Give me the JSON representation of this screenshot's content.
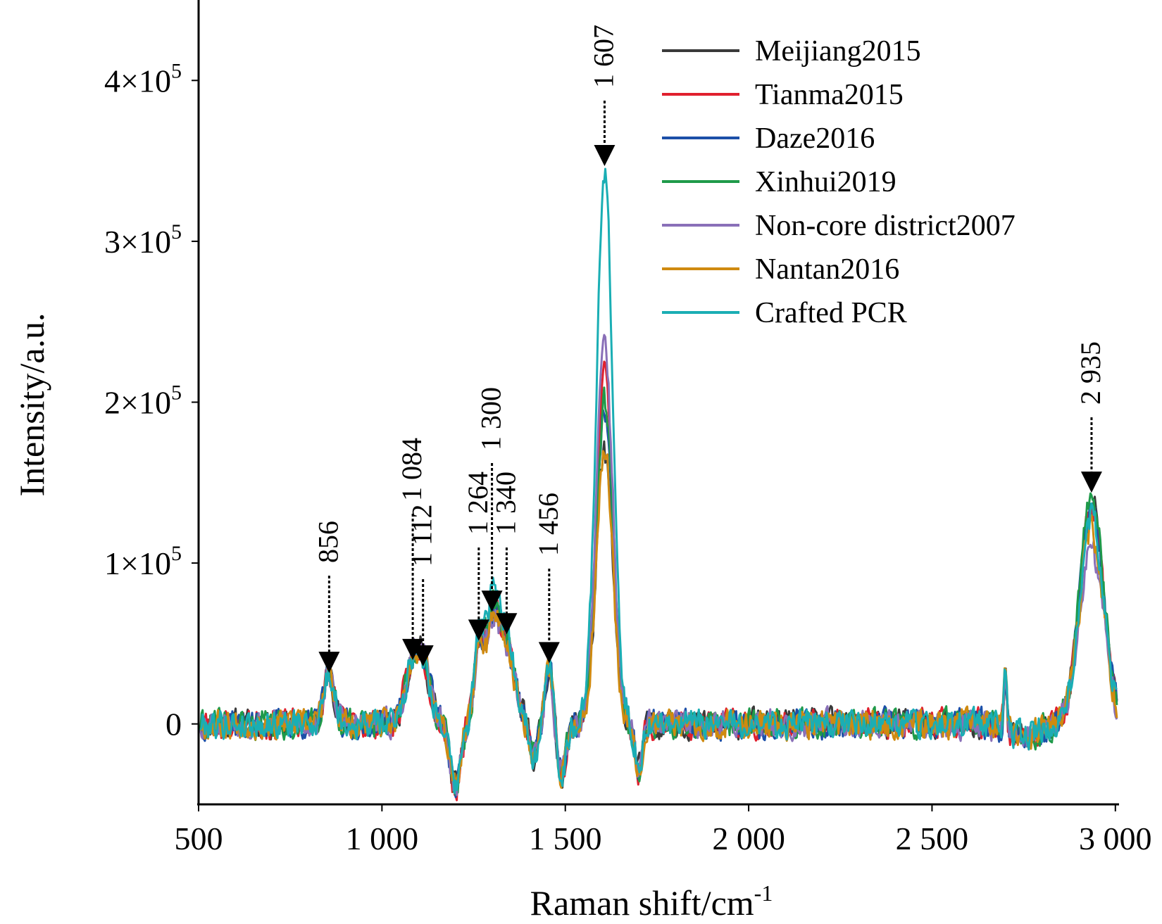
{
  "chart_data": {
    "type": "line",
    "xlabel": "Raman shift/cm",
    "xlabel_sup": "-1",
    "ylabel": "Intensity/a.u.",
    "xlim": [
      500,
      3010
    ],
    "ylim": [
      -50000,
      450000
    ],
    "x_ticks": [
      {
        "value": 500,
        "label": "500"
      },
      {
        "value": 1000,
        "label": "1 000"
      },
      {
        "value": 1500,
        "label": "1 500"
      },
      {
        "value": 2000,
        "label": "2 000"
      },
      {
        "value": 2500,
        "label": "2 500"
      },
      {
        "value": 3000,
        "label": "3 000"
      }
    ],
    "y_ticks": [
      {
        "value": 0,
        "base": "0",
        "exp": ""
      },
      {
        "value": 100000,
        "base": "1×10",
        "exp": "5"
      },
      {
        "value": 200000,
        "base": "2×10",
        "exp": "5"
      },
      {
        "value": 300000,
        "base": "3×10",
        "exp": "5"
      },
      {
        "value": 400000,
        "base": "4×10",
        "exp": "5"
      }
    ],
    "legend_position": "top-right",
    "grid": false,
    "peaks": [
      {
        "x": 856,
        "label": "856",
        "y": 30000
      },
      {
        "x": 1084,
        "label": "1 084",
        "y": 38000
      },
      {
        "x": 1112,
        "label": "1 112",
        "y": 34000
      },
      {
        "x": 1264,
        "label": "1 264",
        "y": 50000
      },
      {
        "x": 1300,
        "label": "1 300",
        "y": 68000
      },
      {
        "x": 1340,
        "label": "1 340",
        "y": 54000
      },
      {
        "x": 1456,
        "label": "1 456",
        "y": 36000
      },
      {
        "x": 1607,
        "label": "1 607",
        "y": 345000
      },
      {
        "x": 2935,
        "label": "2 935",
        "y": 142000
      }
    ],
    "series": [
      {
        "name": "Meijiang2015",
        "color": "#3a3a3a",
        "peak1607": 168000,
        "peak2935": 138000,
        "peak1300": 60000,
        "seed": 11
      },
      {
        "name": "Tianma2015",
        "color": "#e0202e",
        "peak1607": 222000,
        "peak2935": 136000,
        "peak1300": 62000,
        "seed": 23
      },
      {
        "name": "Daze2016",
        "color": "#1c4fa8",
        "peak1607": 195000,
        "peak2935": 134000,
        "peak1300": 61000,
        "seed": 37
      },
      {
        "name": "Xinhui2019",
        "color": "#1f9a4a",
        "peak1607": 202000,
        "peak2935": 142000,
        "peak1300": 63000,
        "seed": 41
      },
      {
        "name": "Non-core district2007",
        "color": "#8a70b8",
        "peak1607": 238000,
        "peak2935": 110000,
        "peak1300": 58000,
        "seed": 53
      },
      {
        "name": "Nantan2016",
        "color": "#cf8a10",
        "peak1607": 172000,
        "peak2935": 120000,
        "peak1300": 57000,
        "seed": 67
      },
      {
        "name": "Crafted PCR",
        "color": "#1aaeb4",
        "peak1607": 345000,
        "peak2935": 130000,
        "peak1300": 70000,
        "seed": 79
      }
    ]
  }
}
